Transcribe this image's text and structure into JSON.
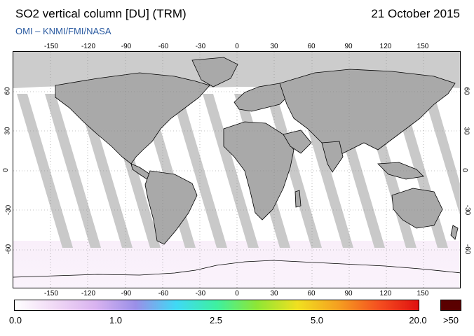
{
  "header": {
    "title": "SO2 vertical column [DU] (TRM)",
    "date": "21 October 2015",
    "source": "OMI  –  KNMI/FMI/NASA"
  },
  "map": {
    "projection": "equirectangular",
    "lon_range": [
      -180,
      180
    ],
    "lat_range": [
      -90,
      90
    ],
    "lon_ticks": [
      "-150",
      "-120",
      "-90",
      "-60",
      "-30",
      "0",
      "30",
      "60",
      "90",
      "120",
      "150"
    ],
    "lat_ticks": [
      "60",
      "30",
      "0",
      "-30",
      "-60"
    ],
    "colors": {
      "no_data_polar": "#cccccc",
      "orbit_gap": "#c8c8c8",
      "orbit_gap_dark": "#9e9e9e",
      "land_missing": "#a8a8a8",
      "background": "#ffffff"
    }
  },
  "colorbar": {
    "labels": [
      "0.0",
      "1.0",
      "2.5",
      "5.0",
      "20.0",
      ">50"
    ],
    "stops": [
      "#ffffff",
      "#f0d8f5",
      "#d9b3f0",
      "#9a8fe8",
      "#3fd9f5",
      "#3ef0a0",
      "#8ee635",
      "#f0e020",
      "#f5a020",
      "#f55020",
      "#e01010"
    ],
    "overflow_color": "#5a0000"
  }
}
